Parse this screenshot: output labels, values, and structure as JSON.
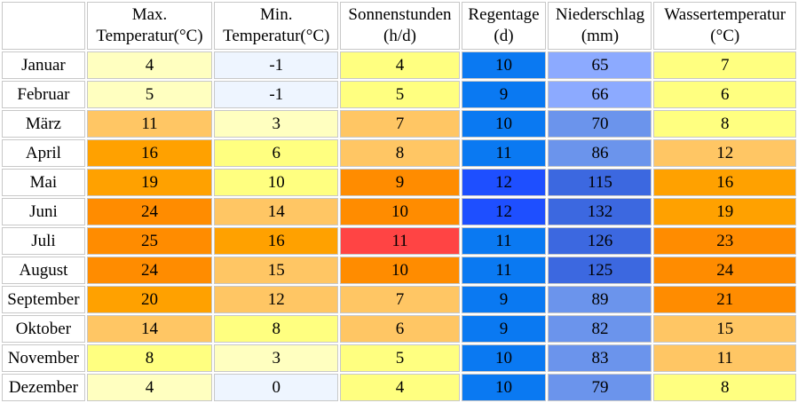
{
  "headers": [
    {
      "line1": "",
      "line2": ""
    },
    {
      "line1": "Max.",
      "line2": "Temperatur(°C)"
    },
    {
      "line1": "Min.",
      "line2": "Temperatur(°C)"
    },
    {
      "line1": "Sonnenstunden",
      "line2": "(h/d)"
    },
    {
      "line1": "Regentage",
      "line2": "(d)"
    },
    {
      "line1": "Niederschlag",
      "line2": "(mm)"
    },
    {
      "line1": "Wassertemperatur",
      "line2": "(°C)"
    }
  ],
  "rows": [
    {
      "month": "Januar",
      "values": [
        "4",
        "-1",
        "4",
        "10",
        "65",
        "7"
      ],
      "colors": [
        "#ffffc0",
        "#eef5ff",
        "#ffff80",
        "#0a79f2",
        "#8caaff",
        "#ffff80"
      ]
    },
    {
      "month": "Februar",
      "values": [
        "5",
        "-1",
        "5",
        "9",
        "66",
        "6"
      ],
      "colors": [
        "#ffffc0",
        "#eef5ff",
        "#ffff80",
        "#0a79f2",
        "#8caaff",
        "#ffff80"
      ]
    },
    {
      "month": "März",
      "values": [
        "11",
        "3",
        "7",
        "10",
        "70",
        "8"
      ],
      "colors": [
        "#ffc664",
        "#ffffc0",
        "#ffc664",
        "#0a79f2",
        "#6b94ec",
        "#ffff80"
      ]
    },
    {
      "month": "April",
      "values": [
        "16",
        "6",
        "8",
        "11",
        "86",
        "12"
      ],
      "colors": [
        "#ffa100",
        "#ffff80",
        "#ffc664",
        "#0a79f2",
        "#6b94ec",
        "#ffc664"
      ]
    },
    {
      "month": "Mai",
      "values": [
        "19",
        "10",
        "9",
        "12",
        "115",
        "16"
      ],
      "colors": [
        "#ffa100",
        "#ffff80",
        "#ff8c00",
        "#1e4fff",
        "#3c68e0",
        "#ffa100"
      ]
    },
    {
      "month": "Juni",
      "values": [
        "24",
        "14",
        "10",
        "12",
        "132",
        "19"
      ],
      "colors": [
        "#ff8c00",
        "#ffc664",
        "#ff8c00",
        "#1e4fff",
        "#3c68e0",
        "#ffa100"
      ]
    },
    {
      "month": "Juli",
      "values": [
        "25",
        "16",
        "11",
        "11",
        "126",
        "23"
      ],
      "colors": [
        "#ff8c00",
        "#ffa100",
        "#ff4444",
        "#0a79f2",
        "#3c68e0",
        "#ff8c00"
      ]
    },
    {
      "month": "August",
      "values": [
        "24",
        "15",
        "10",
        "11",
        "125",
        "24"
      ],
      "colors": [
        "#ff8c00",
        "#ffc664",
        "#ff8c00",
        "#0a79f2",
        "#3c68e0",
        "#ff8c00"
      ]
    },
    {
      "month": "September",
      "values": [
        "20",
        "12",
        "7",
        "9",
        "89",
        "21"
      ],
      "colors": [
        "#ffa100",
        "#ffc664",
        "#ffc664",
        "#0a79f2",
        "#6b94ec",
        "#ff8c00"
      ]
    },
    {
      "month": "Oktober",
      "values": [
        "14",
        "8",
        "6",
        "9",
        "82",
        "15"
      ],
      "colors": [
        "#ffc664",
        "#ffff80",
        "#ffc664",
        "#0a79f2",
        "#6b94ec",
        "#ffc664"
      ]
    },
    {
      "month": "November",
      "values": [
        "8",
        "3",
        "5",
        "10",
        "83",
        "11"
      ],
      "colors": [
        "#ffff80",
        "#ffffc0",
        "#ffff80",
        "#0a79f2",
        "#6b94ec",
        "#ffc664"
      ]
    },
    {
      "month": "Dezember",
      "values": [
        "4",
        "0",
        "4",
        "10",
        "79",
        "8"
      ],
      "colors": [
        "#ffffc0",
        "#eef5ff",
        "#ffff80",
        "#0a79f2",
        "#6b94ec",
        "#ffff80"
      ]
    }
  ]
}
